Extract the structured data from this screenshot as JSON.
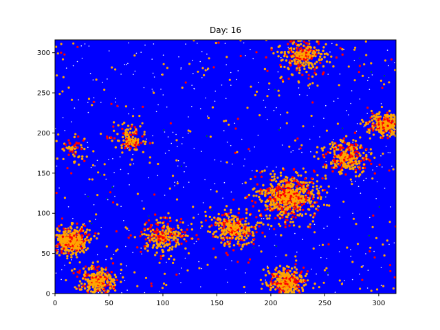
{
  "chart_data": {
    "type": "scatter",
    "title": "Day: 16",
    "xlabel": "",
    "ylabel": "",
    "xlim": [
      0,
      316
    ],
    "ylim": [
      0,
      316
    ],
    "xticks": [
      0,
      50,
      100,
      150,
      200,
      250,
      300
    ],
    "yticks": [
      0,
      50,
      100,
      150,
      200,
      250,
      300
    ],
    "xtick_labels": [
      "0",
      "50",
      "100",
      "150",
      "200",
      "250",
      "300"
    ],
    "ytick_labels": [
      "0",
      "50",
      "100",
      "150",
      "200",
      "250",
      "300"
    ],
    "grid": false,
    "legend": "none",
    "background_color": "#0000ff",
    "series_colors": {
      "susceptible": "#0000ff",
      "exposed": "#ffa500",
      "infected": "#ff0000",
      "recovered": "#008000",
      "empty": "#ffffff"
    },
    "hotspots": [
      {
        "x": 15,
        "y": 65,
        "r": 25,
        "density": 1.0
      },
      {
        "x": 305,
        "y": 210,
        "r": 22,
        "density": 1.0
      },
      {
        "x": 215,
        "y": 15,
        "r": 25,
        "density": 0.9
      },
      {
        "x": 215,
        "y": 120,
        "r": 45,
        "density": 0.45
      },
      {
        "x": 165,
        "y": 80,
        "r": 35,
        "density": 0.35
      },
      {
        "x": 270,
        "y": 170,
        "r": 35,
        "density": 0.3
      },
      {
        "x": 70,
        "y": 190,
        "r": 25,
        "density": 0.25
      },
      {
        "x": 230,
        "y": 295,
        "r": 35,
        "density": 0.3
      },
      {
        "x": 100,
        "y": 70,
        "r": 35,
        "density": 0.25
      },
      {
        "x": 15,
        "y": 180,
        "r": 20,
        "density": 0.15
      },
      {
        "x": 40,
        "y": 15,
        "r": 30,
        "density": 0.45
      }
    ]
  }
}
